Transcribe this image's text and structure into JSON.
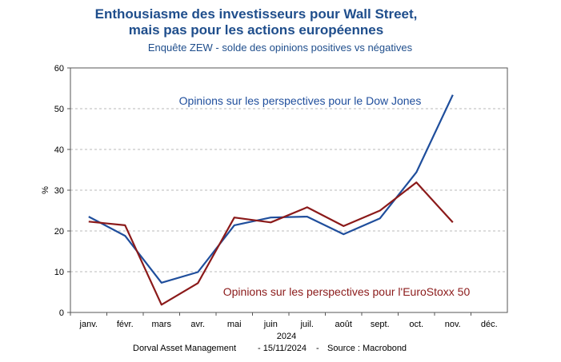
{
  "header": {
    "title_line1": "Enthousiasme des investisseurs pour Wall Street,",
    "title_line2": "mais pas pour les actions européennes",
    "subtitle": "Enquête ZEW  - solde des opinions positives vs négatives"
  },
  "chart_data": {
    "type": "line",
    "ylabel": "%",
    "xlabel": "2024",
    "ylim": [
      0,
      60
    ],
    "yticks": [
      0,
      10,
      20,
      30,
      40,
      50,
      60
    ],
    "grid": true,
    "categories": [
      "janv.",
      "févr.",
      "mars",
      "avr.",
      "mai",
      "juin",
      "juil.",
      "août",
      "sept.",
      "oct.",
      "nov.",
      "déc."
    ],
    "series": [
      {
        "name": "Opinions sur les perspectives pour le Dow Jones",
        "color": "#1f4e9c",
        "values": [
          23.5,
          18.8,
          7.3,
          9.9,
          21.4,
          23.3,
          23.5,
          19.2,
          23.1,
          34.4,
          53.4,
          null
        ]
      },
      {
        "name": "Opinions sur les perspectives pour l'EuroStoxx 50",
        "color": "#8b1a1a",
        "values": [
          22.3,
          21.4,
          1.9,
          7.2,
          23.3,
          22.1,
          25.8,
          21.2,
          25.0,
          31.9,
          22.1,
          null
        ]
      }
    ]
  },
  "footer": {
    "source_org": "Dorval Asset Management",
    "date": "- 15/11/2024",
    "source_sep": "-",
    "source": "Source : Macrobond"
  }
}
